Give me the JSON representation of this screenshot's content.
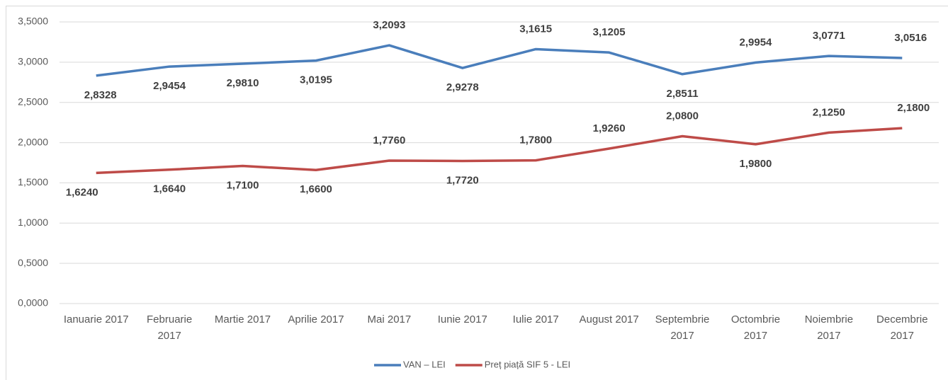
{
  "chart_data": {
    "type": "line",
    "categories": [
      "Ianuarie 2017",
      "Februarie 2017",
      "Martie 2017",
      "Aprilie 2017",
      "Mai 2017",
      "Iunie 2017",
      "Iulie 2017",
      "August 2017",
      "Septembrie 2017",
      "Octombrie 2017",
      "Noiembrie 2017",
      "Decembrie 2017"
    ],
    "series": [
      {
        "name": "VAN – LEI",
        "color": "#4a7ebb",
        "values": [
          2.8328,
          2.9454,
          2.981,
          3.0195,
          3.2093,
          2.9278,
          3.1615,
          3.1205,
          2.8511,
          2.9954,
          3.0771,
          3.0516
        ],
        "value_labels": [
          "2,8328",
          "2,9454",
          "2,9810",
          "3,0195",
          "3,2093",
          "2,9278",
          "3,1615",
          "3,1205",
          "2,8511",
          "2,9954",
          "3,0771",
          "3,0516"
        ]
      },
      {
        "name": "Preț piață SIF 5 - LEI",
        "color": "#be4b48",
        "values": [
          1.624,
          1.664,
          1.71,
          1.66,
          1.776,
          1.772,
          1.78,
          1.926,
          2.08,
          1.98,
          2.125,
          2.18
        ],
        "value_labels": [
          "1,6240",
          "1,6640",
          "1,7100",
          "1,6600",
          "1,7760",
          "1,7720",
          "1,7800",
          "1,9260",
          "2,0800",
          "1,9800",
          "2,1250",
          "2,1800"
        ]
      }
    ],
    "ylim": [
      0,
      3.5
    ],
    "yticks": [
      {
        "value": 0,
        "label": "0,0000"
      },
      {
        "value": 0.5,
        "label": "0,5000"
      },
      {
        "value": 1,
        "label": "1,0000"
      },
      {
        "value": 1.5,
        "label": "1,5000"
      },
      {
        "value": 2,
        "label": "2,0000"
      },
      {
        "value": 2.5,
        "label": "2,5000"
      },
      {
        "value": 3,
        "label": "3,0000"
      },
      {
        "value": 3.5,
        "label": "3,5000"
      }
    ],
    "grid": true,
    "legend": "bottom"
  }
}
